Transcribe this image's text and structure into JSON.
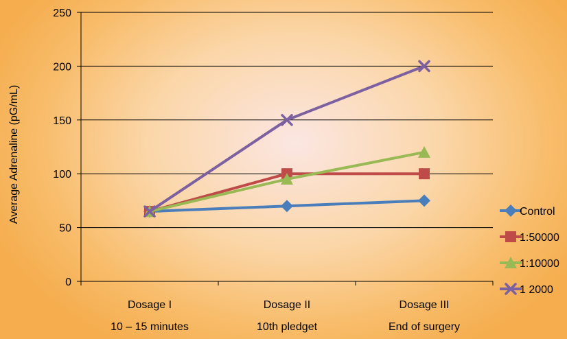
{
  "chart_data": {
    "type": "line",
    "title": "",
    "xlabel": "",
    "ylabel": "Average Adrenaline (pG/mL)",
    "ylim": [
      0,
      250
    ],
    "yticks": [
      0,
      50,
      100,
      150,
      200,
      250
    ],
    "grid": true,
    "legend_position": "right",
    "categories": [
      {
        "line1": "Dosage I",
        "line2": "10 – 15 minutes"
      },
      {
        "line1": "Dosage II",
        "line2": "10th pledget"
      },
      {
        "line1": "Dosage III",
        "line2": "End of surgery"
      }
    ],
    "series": [
      {
        "name": "Control",
        "values": [
          65,
          70,
          75
        ],
        "color": "#4a7ebb",
        "marker": "diamond"
      },
      {
        "name": "1:50000",
        "values": [
          65,
          100,
          100
        ],
        "color": "#be4b48",
        "marker": "square"
      },
      {
        "name": "1:10000",
        "values": [
          65,
          95,
          120
        ],
        "color": "#98b954",
        "marker": "triangle"
      },
      {
        "name": "1   2000",
        "values": [
          65,
          150,
          200
        ],
        "color": "#7d60a0",
        "marker": "x"
      }
    ]
  }
}
